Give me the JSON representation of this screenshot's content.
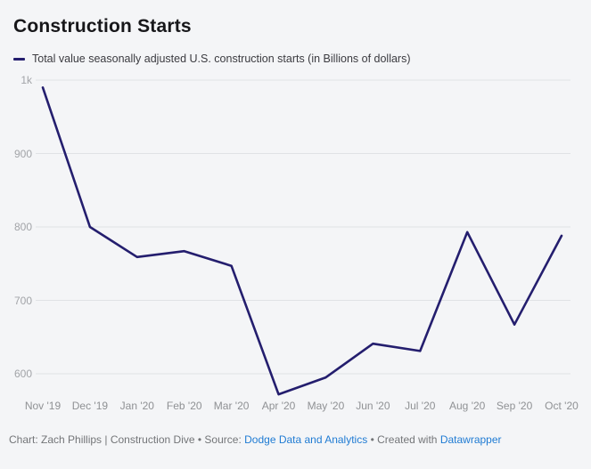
{
  "header": {
    "title": "Construction Starts"
  },
  "legend": {
    "label": "Total value seasonally adjusted U.S. construction starts (in Billions of dollars)"
  },
  "colors": {
    "line": "#241e6e",
    "link": "#1f7bd3",
    "background": "#f4f5f7"
  },
  "chart_data": {
    "type": "line",
    "title": "Construction Starts",
    "series_name": "Total value seasonally adjusted U.S. construction starts (in Billions of dollars)",
    "categories": [
      "Nov '19",
      "Dec '19",
      "Jan '20",
      "Feb '20",
      "Mar '20",
      "Apr '20",
      "May '20",
      "Jun '20",
      "Jul '20",
      "Aug '20",
      "Sep '20",
      "Oct '20"
    ],
    "values": [
      990,
      800,
      759,
      767,
      747,
      572,
      595,
      641,
      631,
      793,
      667,
      788
    ],
    "ylim": [
      600,
      1000
    ],
    "yticks": [
      {
        "label": "600",
        "value": 600
      },
      {
        "label": "700",
        "value": 700
      },
      {
        "label": "800",
        "value": 800
      },
      {
        "label": "900",
        "value": 900
      },
      {
        "label": "1k",
        "value": 1000
      }
    ],
    "xlabel": "",
    "ylabel": "",
    "grid": "horizontal",
    "legend_position": "top-left",
    "line_color": "#241e6e"
  },
  "footer": {
    "credit": "Chart: Zach Phillips | Construction Dive",
    "bullet": "•",
    "source_label": "Source:",
    "source_link": "Dodge Data and Analytics",
    "created_label": "Created with",
    "created_link": "Datawrapper"
  }
}
